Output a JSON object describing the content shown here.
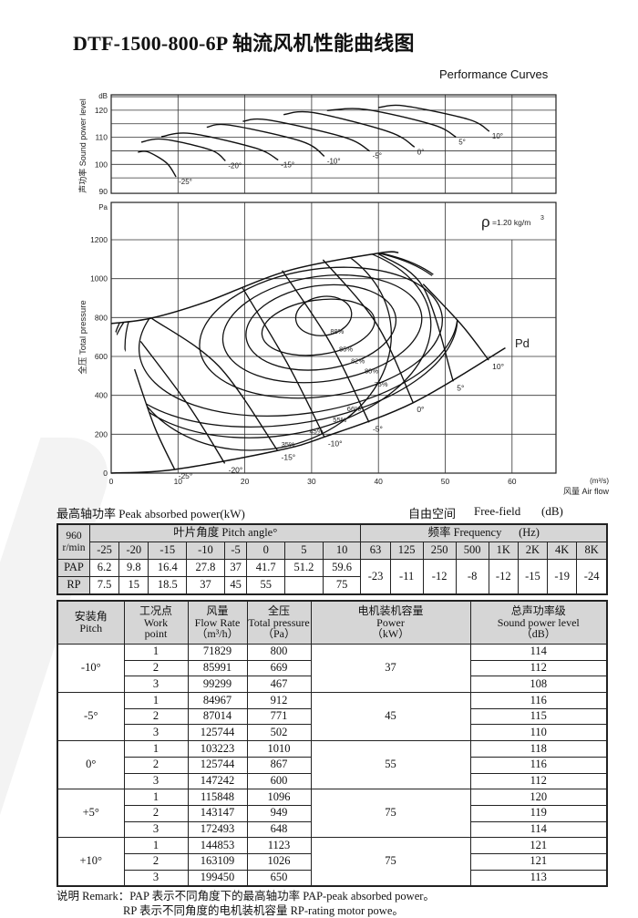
{
  "title": "DTF-1500-800-6P 轴流风机性能曲线图",
  "subtitle": "Performance Curves",
  "sound_chart": {
    "ylabel": "声功率 Sound power level",
    "unit": "dB",
    "yticks": [
      "90",
      "100",
      "110",
      "120"
    ]
  },
  "pressure_chart": {
    "ylabel": "全压 Total pressure",
    "unit": "Pa",
    "yticks": [
      "0",
      "200",
      "400",
      "600",
      "800",
      "1000",
      "1200"
    ],
    "xticks": [
      "0",
      "10",
      "20",
      "30",
      "40",
      "50",
      "60"
    ],
    "xunit": "(m³/s)",
    "xlabel": "风量 Air flow",
    "density_symbol": "ρ",
    "density": "=1.20 kg/m",
    "density_sup": "3",
    "pd_label": "Pd"
  },
  "chart_data": [
    {
      "type": "line",
      "title": "",
      "ylabel": "声功率 Sound power level",
      "yunit": "dB",
      "xlim": [
        0,
        66.6
      ],
      "ylim": [
        89.3,
        125.7
      ],
      "grid": true,
      "series": [
        {
          "name": "-25°",
          "points": [
            [
              4.0,
              104.5
            ],
            [
              5.5,
              104.6
            ],
            [
              8.3,
              100.5
            ],
            [
              9.7,
              95.4
            ]
          ]
        },
        {
          "name": "-20°",
          "points": [
            [
              4.5,
              108.2
            ],
            [
              7.8,
              109.3
            ],
            [
              14.8,
              105.4
            ],
            [
              17.1,
              101.3
            ]
          ]
        },
        {
          "name": "-15°",
          "points": [
            [
              7.5,
              110.2
            ],
            [
              11.9,
              111.4
            ],
            [
              21.6,
              106.0
            ],
            [
              25.0,
              101.6
            ]
          ]
        },
        {
          "name": "-10°",
          "points": [
            [
              14.3,
              113.7
            ],
            [
              17.7,
              114.5
            ],
            [
              28.5,
              108.5
            ],
            [
              31.9,
              103.0
            ]
          ]
        },
        {
          "name": "-5°",
          "points": [
            [
              19.7,
              115.9
            ],
            [
              23.5,
              116.4
            ],
            [
              34.9,
              110.0
            ],
            [
              38.7,
              104.9
            ]
          ]
        },
        {
          "name": "0°",
          "points": [
            [
              25.8,
              118.4
            ],
            [
              30.3,
              119.1
            ],
            [
              41.6,
              112.0
            ],
            [
              45.4,
              106.4
            ]
          ]
        },
        {
          "name": "5°",
          "points": [
            [
              32.3,
              119.9
            ],
            [
              38.1,
              120.3
            ],
            [
              48.2,
              114.6
            ],
            [
              51.6,
              110.1
            ]
          ]
        },
        {
          "name": "10°",
          "points": [
            [
              40.0,
              121.0
            ],
            [
              43.9,
              121.6
            ],
            [
              53.5,
              116.6
            ],
            [
              56.6,
              112.2
            ]
          ]
        }
      ]
    },
    {
      "type": "line",
      "title": "",
      "xlabel": "风量 Air flow (m³/s)",
      "ylabel": "全压 Total pressure",
      "yunit": "Pa",
      "xlim": [
        0,
        66.6
      ],
      "ylim": [
        0,
        1392
      ],
      "grid": true,
      "series": [
        {
          "name": "-25°",
          "points": [
            [
              3.5,
              534
            ],
            [
              6.5,
              237
            ],
            [
              9.5,
              19
            ]
          ]
        },
        {
          "name": "-20°",
          "points": [
            [
              4.4,
              678
            ],
            [
              11.6,
              347
            ],
            [
              17.0,
              50
            ]
          ]
        },
        {
          "name": "-15°",
          "points": [
            [
              6.1,
              795
            ],
            [
              16.1,
              550
            ],
            [
              24.9,
              116
            ]
          ]
        },
        {
          "name": "-10°",
          "points": [
            [
              19.6,
              956
            ],
            [
              26.6,
              550
            ],
            [
              31.9,
              186
            ]
          ]
        },
        {
          "name": "-5°",
          "points": [
            [
              25.6,
              1042
            ],
            [
              32.7,
              675
            ],
            [
              38.6,
              261
            ]
          ]
        },
        {
          "name": "0°",
          "points": [
            [
              31.7,
              1097
            ],
            [
              39.7,
              769
            ],
            [
              45.2,
              362
            ]
          ]
        },
        {
          "name": "5°",
          "points": [
            [
              40.0,
              1128
            ],
            [
              46.7,
              956
            ],
            [
              51.2,
              472
            ]
          ]
        },
        {
          "name": "10°",
          "points": [
            [
              46.7,
              972
            ],
            [
              52.5,
              760
            ],
            [
              56.5,
              581
            ]
          ]
        }
      ],
      "envelope": [
        [
          0,
          769
        ],
        [
          6,
          797
        ],
        [
          14,
          878
        ],
        [
          26.6,
          1042
        ],
        [
          40,
          1131
        ],
        [
          43,
          1134
        ]
      ],
      "pd_curve": [
        [
          0,
          0
        ],
        [
          9.5,
          19
        ],
        [
          24.9,
          116
        ],
        [
          31.9,
          186
        ],
        [
          45.2,
          362
        ],
        [
          59,
          644
        ]
      ],
      "efficiency_contours": [
        {
          "label": "88%",
          "center": [
            31.8,
            808
          ],
          "rx": 4.2,
          "ry": 100
        },
        {
          "label": "85%",
          "center": [
            31.0,
            750
          ],
          "rx": 8.5,
          "ry": 140
        },
        {
          "label": "82%",
          "center": [
            31.4,
            749
          ],
          "rx": 11.3,
          "ry": 215
        },
        {
          "label": "80%",
          "center": [
            31.6,
            742
          ],
          "rx": 15.0,
          "ry": 270
        },
        {
          "label": "75%",
          "center": [
            31.4,
            722
          ],
          "rx": 18.3,
          "ry": 328
        },
        {
          "label": "66%",
          "center": [
            28.0,
            725
          ],
          "rx": 24.0,
          "ry": 420
        },
        {
          "label": "55%",
          "center": [
            26.0,
            700
          ],
          "rx": 26.0,
          "ry": 450
        },
        {
          "label": "45%",
          "center": [
            24.0,
            690
          ],
          "rx": 24.0,
          "ry": 500
        },
        {
          "label": "35%",
          "center": [
            22.0,
            680
          ],
          "rx": 20.0,
          "ry": 560
        }
      ]
    }
  ],
  "pap_section": {
    "heading": "最高轴功率 Peak absorbed power(kW)",
    "free_field": "自由空间",
    "free_field_en": "Free-field",
    "db_unit": "(dB)",
    "speed": "960",
    "speed_unit": "r/min",
    "pitch_header": "叶片角度 Pitch angle°",
    "freq_header": "频率 Frequency      (Hz)",
    "pitches": [
      "-25",
      "-20",
      "-15",
      "-10",
      "-5",
      "0",
      "5",
      "10"
    ],
    "freqs": [
      "63",
      "125",
      "250",
      "500",
      "1K",
      "2K",
      "4K",
      "8K"
    ],
    "pap_label": "PAP",
    "rp_label": "RP",
    "pap": [
      "6.2",
      "9.8",
      "16.4",
      "27.8",
      "37",
      "41.7",
      "51.2",
      "59.6"
    ],
    "rp": [
      "7.5",
      "15",
      "18.5",
      "37",
      "45",
      "55",
      "",
      "75"
    ],
    "freq_values": [
      "-23",
      "-11",
      "-12",
      "-8",
      "-12",
      "-15",
      "-19",
      "-24"
    ]
  },
  "work_table": {
    "headers": [
      [
        "安装角",
        "Pitch"
      ],
      [
        "工况点",
        "Work",
        "point"
      ],
      [
        "风量",
        "Flow Rate",
        "（m³/h）"
      ],
      [
        "全压",
        "Total pressure",
        "（Pa）"
      ],
      [
        "电机装机容量",
        "Power",
        "（kW）"
      ],
      [
        "总声功率级",
        "Sound power level",
        "（dB）"
      ]
    ],
    "groups": [
      {
        "pitch": "-10°",
        "power": "37",
        "rows": [
          [
            "1",
            "71829",
            "800",
            "114"
          ],
          [
            "2",
            "85991",
            "669",
            "112"
          ],
          [
            "3",
            "99299",
            "467",
            "108"
          ]
        ]
      },
      {
        "pitch": "-5°",
        "power": "45",
        "rows": [
          [
            "1",
            "84967",
            "912",
            "116"
          ],
          [
            "2",
            "87014",
            "771",
            "115"
          ],
          [
            "3",
            "125744",
            "502",
            "110"
          ]
        ]
      },
      {
        "pitch": "0°",
        "power": "55",
        "rows": [
          [
            "1",
            "103223",
            "1010",
            "118"
          ],
          [
            "2",
            "125744",
            "867",
            "116"
          ],
          [
            "3",
            "147242",
            "600",
            "112"
          ]
        ]
      },
      {
        "pitch": "+5°",
        "power": "75",
        "rows": [
          [
            "1",
            "115848",
            "1096",
            "120"
          ],
          [
            "2",
            "143147",
            "949",
            "119"
          ],
          [
            "3",
            "172493",
            "648",
            "114"
          ]
        ]
      },
      {
        "pitch": "+10°",
        "power": "75",
        "rows": [
          [
            "1",
            "144853",
            "1123",
            "121"
          ],
          [
            "2",
            "163109",
            "1026",
            "121"
          ],
          [
            "3",
            "199450",
            "650",
            "113"
          ]
        ]
      }
    ]
  },
  "remark": {
    "line1": "说明 Remark：PAP 表示不同角度下的最高轴功率 PAP-peak absorbed power。",
    "line2": "RP 表示不同角度的电机装机容量 RP-rating motor powe。"
  }
}
